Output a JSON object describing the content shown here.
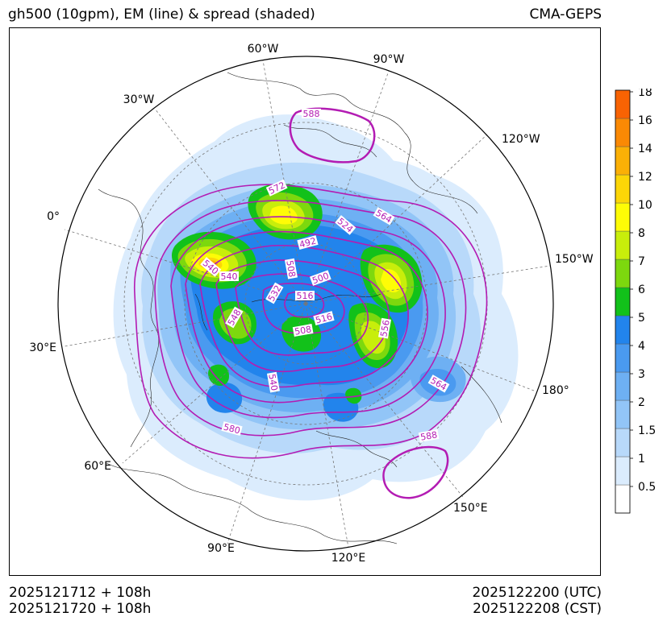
{
  "header": {
    "title": "gh500 (10gpm), EM (line) & spread (shaded)",
    "model": "CMA-GEPS"
  },
  "footer": {
    "init_utc": "2025121712 + 108h",
    "init_cst": "2025121720 + 108h",
    "valid_utc": "2025122200 (UTC)",
    "valid_cst": "2025122208 (CST)"
  },
  "map": {
    "projection": "north-polar-stereographic",
    "longitude_labels": [
      "60°W",
      "90°W",
      "30°W",
      "120°W",
      "0°",
      "150°W",
      "30°E",
      "180°",
      "60°E",
      "150°E",
      "90°E",
      "120°E"
    ],
    "contour_labels": [
      "588",
      "572",
      "564",
      "524",
      "492",
      "540",
      "540",
      "508",
      "500",
      "532",
      "516",
      "548",
      "516",
      "508",
      "556",
      "540",
      "564",
      "580",
      "588"
    ],
    "colors": {
      "contour": "#b31cb3",
      "graticule": "#777777",
      "coast": "#222222"
    }
  },
  "colorbar": {
    "tick_labels": [
      "0.5",
      "1",
      "1.5",
      "2",
      "3",
      "4",
      "5",
      "6",
      "7",
      "8",
      "10",
      "12",
      "14",
      "16",
      "18"
    ],
    "colors": [
      "#ffffff",
      "#dbecfd",
      "#b8d9fa",
      "#92c5f7",
      "#6eb0f3",
      "#4a9af0",
      "#2284ec",
      "#12c11a",
      "#7dd80e",
      "#c8ee0b",
      "#fefc06",
      "#fcd607",
      "#fbb006",
      "#fa8904",
      "#f86303"
    ]
  }
}
